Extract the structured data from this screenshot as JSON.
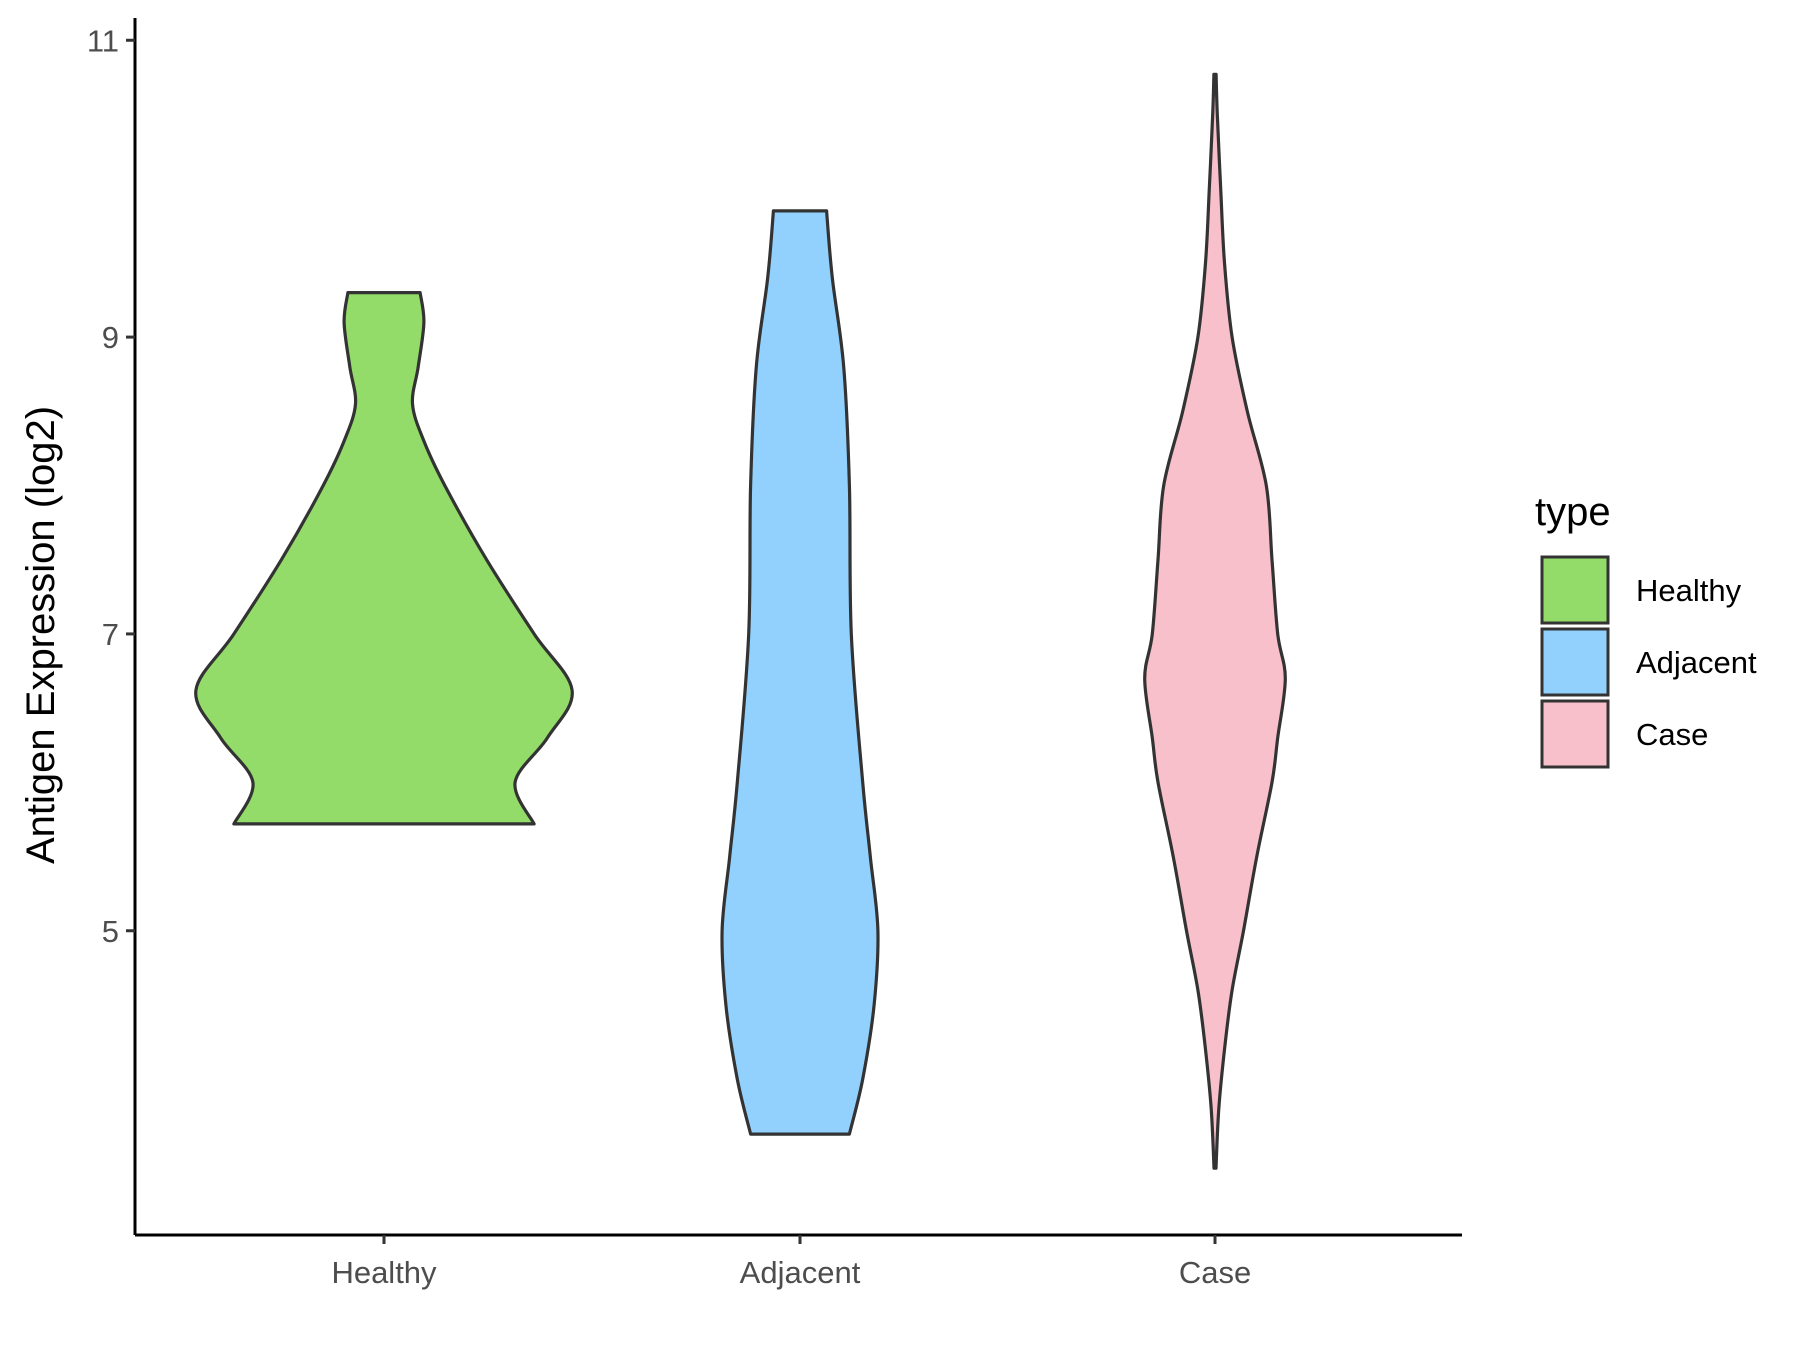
{
  "chart_data": {
    "type": "violin",
    "title": "",
    "xlabel": "",
    "ylabel": "Antigen Expression (log2)",
    "ylim": [
      2.95,
      11.15
    ],
    "yticks": [
      5,
      7,
      9,
      11
    ],
    "categories": [
      "Healthy",
      "Adjacent",
      "Case"
    ],
    "legend": {
      "title": "type",
      "position": "right",
      "entries": [
        "Healthy",
        "Adjacent",
        "Case"
      ]
    },
    "colors": {
      "Healthy": "#93dc69",
      "Adjacent": "#92d1fe",
      "Case": "#f7c0cb",
      "outline": "#333333"
    },
    "series": [
      {
        "name": "Healthy",
        "min": 5.72,
        "max": 9.3,
        "density": [
          [
            5.72,
            0.79
          ],
          [
            6.0,
            0.69
          ],
          [
            6.3,
            0.86
          ],
          [
            6.62,
            0.99
          ],
          [
            7.0,
            0.79
          ],
          [
            7.5,
            0.54
          ],
          [
            8.0,
            0.32
          ],
          [
            8.3,
            0.21
          ],
          [
            8.55,
            0.15
          ],
          [
            8.8,
            0.18
          ],
          [
            9.1,
            0.21
          ],
          [
            9.3,
            0.19
          ]
        ]
      },
      {
        "name": "Adjacent",
        "min": 3.63,
        "max": 9.85,
        "density": [
          [
            3.63,
            0.26
          ],
          [
            4.0,
            0.33
          ],
          [
            4.5,
            0.39
          ],
          [
            5.0,
            0.41
          ],
          [
            5.5,
            0.37
          ],
          [
            6.0,
            0.33
          ],
          [
            7.0,
            0.27
          ],
          [
            8.0,
            0.26
          ],
          [
            8.8,
            0.23
          ],
          [
            9.4,
            0.17
          ],
          [
            9.85,
            0.14
          ]
        ]
      },
      {
        "name": "Case",
        "min": 3.4,
        "max": 10.77,
        "density": [
          [
            3.4,
            0.005
          ],
          [
            3.8,
            0.02
          ],
          [
            4.2,
            0.05
          ],
          [
            4.6,
            0.09
          ],
          [
            5.0,
            0.15
          ],
          [
            5.5,
            0.22
          ],
          [
            6.0,
            0.3
          ],
          [
            6.3,
            0.33
          ],
          [
            6.7,
            0.37
          ],
          [
            7.0,
            0.33
          ],
          [
            7.5,
            0.3
          ],
          [
            8.0,
            0.27
          ],
          [
            8.5,
            0.17
          ],
          [
            9.0,
            0.09
          ],
          [
            9.5,
            0.05
          ],
          [
            10.0,
            0.03
          ],
          [
            10.5,
            0.012
          ],
          [
            10.77,
            0.006
          ]
        ]
      }
    ]
  }
}
